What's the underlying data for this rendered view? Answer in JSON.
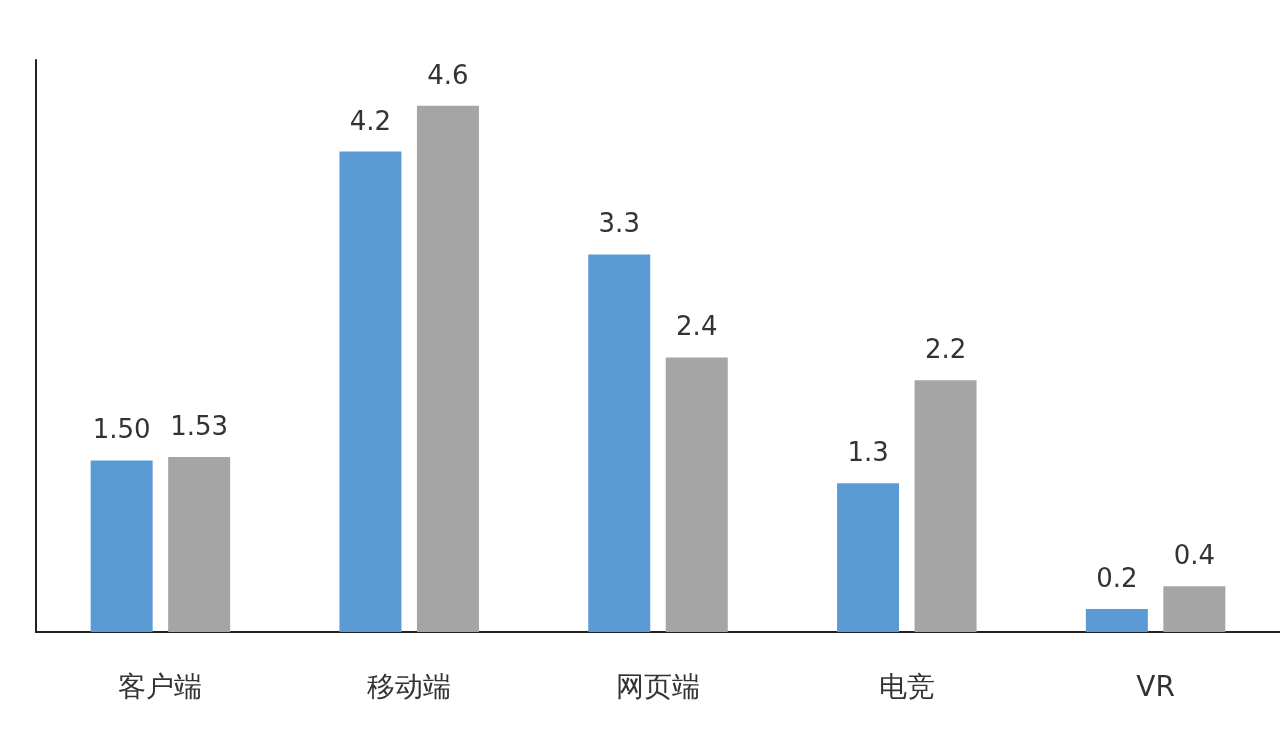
{
  "chart_data": {
    "type": "bar",
    "categories": [
      "客户端",
      "移动端",
      "网页端",
      "电竞",
      "VR"
    ],
    "series": [
      {
        "color": "#5b9bd5",
        "values": [
          1.5,
          4.2,
          3.3,
          1.3,
          0.2
        ],
        "value_labels": [
          "1.50",
          "4.2",
          "3.3",
          "1.3",
          "0.2"
        ]
      },
      {
        "color": "#a5a5a5",
        "values": [
          1.53,
          4.6,
          2.4,
          2.2,
          0.4
        ],
        "value_labels": [
          "1.53",
          "4.6",
          "2.4",
          "2.2",
          "0.4"
        ]
      }
    ],
    "grid": false
  }
}
